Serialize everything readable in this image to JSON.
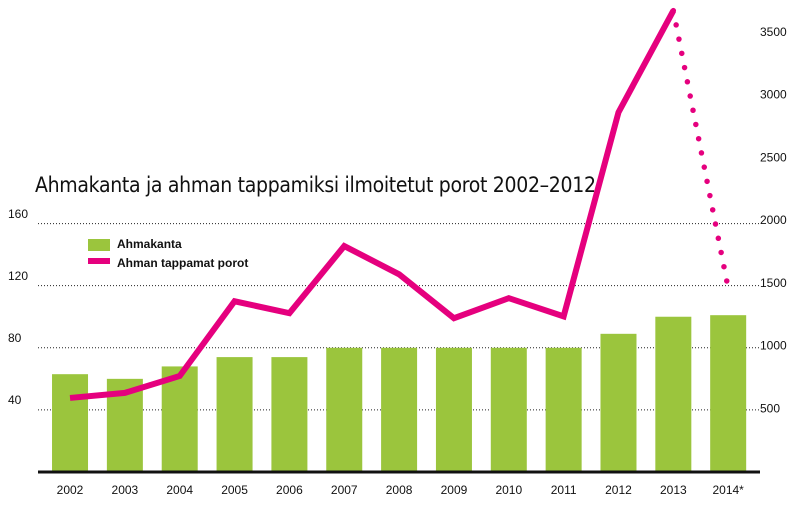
{
  "chart_data": {
    "type": "bar_line",
    "title": "Ahmakanta ja ahman tappamiksi ilmoitetut porot 2002–2012",
    "categories": [
      "2002",
      "2003",
      "2004",
      "2005",
      "2006",
      "2007",
      "2008",
      "2009",
      "2010",
      "2011",
      "2012",
      "2013",
      "2014*"
    ],
    "series": [
      {
        "name": "Ahmakanta",
        "type": "bar",
        "color": "#9bc53d",
        "values": [
          63,
          60,
          68,
          74,
          74,
          80,
          80,
          80,
          80,
          80,
          89,
          100,
          101
        ]
      },
      {
        "name": "Ahman tappamat porot",
        "type": "line",
        "axis": "y2",
        "color": "#e5007e",
        "line_style_last_segment": "dotted",
        "values": [
          590,
          630,
          765,
          1360,
          1265,
          1800,
          1575,
          1225,
          1385,
          1240,
          2865,
          3675,
          1465
        ]
      }
    ],
    "ylim": [
      0,
      304
    ],
    "yticks": [
      40,
      80,
      120,
      160
    ],
    "y2lim": [
      0,
      3760
    ],
    "y2ticks": [
      500,
      1000,
      1500,
      2000,
      2500,
      3000,
      3500
    ],
    "grid": true
  }
}
